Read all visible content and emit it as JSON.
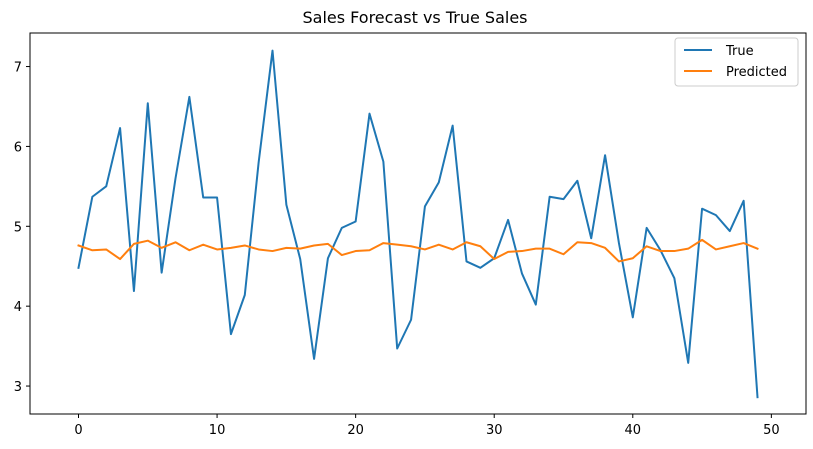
{
  "chart_data": {
    "type": "line",
    "title": "Sales Forecast vs True Sales",
    "xlabel": "",
    "ylabel": "",
    "xlim": [
      -3.5,
      52.5
    ],
    "ylim": [
      2.65,
      7.42
    ],
    "x_ticks": [
      0,
      10,
      20,
      30,
      40,
      50
    ],
    "y_ticks": [
      3,
      4,
      5,
      6,
      7
    ],
    "grid": false,
    "legend_position": "top-right",
    "x": [
      0,
      1,
      2,
      3,
      4,
      5,
      6,
      7,
      8,
      9,
      10,
      11,
      12,
      13,
      14,
      15,
      16,
      17,
      18,
      19,
      20,
      21,
      22,
      23,
      24,
      25,
      26,
      27,
      28,
      29,
      30,
      31,
      32,
      33,
      34,
      35,
      36,
      37,
      38,
      39,
      40,
      41,
      42,
      43,
      44,
      45,
      46,
      47,
      48,
      49
    ],
    "series": [
      {
        "name": "True",
        "color": "#1f77b4",
        "values": [
          4.48,
          5.37,
          5.5,
          6.23,
          4.19,
          6.54,
          4.42,
          5.6,
          6.62,
          5.36,
          5.36,
          3.65,
          4.14,
          5.8,
          7.2,
          5.27,
          4.59,
          3.34,
          4.6,
          4.98,
          5.06,
          6.41,
          5.81,
          3.47,
          3.83,
          5.25,
          5.55,
          6.26,
          4.56,
          4.48,
          4.6,
          5.08,
          4.41,
          4.02,
          5.37,
          5.34,
          5.57,
          4.85,
          5.89,
          4.79,
          3.86,
          4.98,
          4.7,
          4.35,
          3.29,
          5.22,
          5.14,
          4.94,
          5.32,
          2.86
        ]
      },
      {
        "name": "Predicted",
        "color": "#ff7f0e",
        "values": [
          4.76,
          4.7,
          4.71,
          4.59,
          4.78,
          4.82,
          4.73,
          4.8,
          4.7,
          4.77,
          4.71,
          4.73,
          4.76,
          4.71,
          4.69,
          4.73,
          4.72,
          4.76,
          4.78,
          4.64,
          4.69,
          4.7,
          4.79,
          4.77,
          4.75,
          4.71,
          4.77,
          4.71,
          4.8,
          4.75,
          4.59,
          4.68,
          4.69,
          4.72,
          4.72,
          4.65,
          4.8,
          4.79,
          4.73,
          4.56,
          4.6,
          4.75,
          4.69,
          4.69,
          4.72,
          4.83,
          4.71,
          4.75,
          4.79,
          4.72
        ]
      }
    ]
  }
}
